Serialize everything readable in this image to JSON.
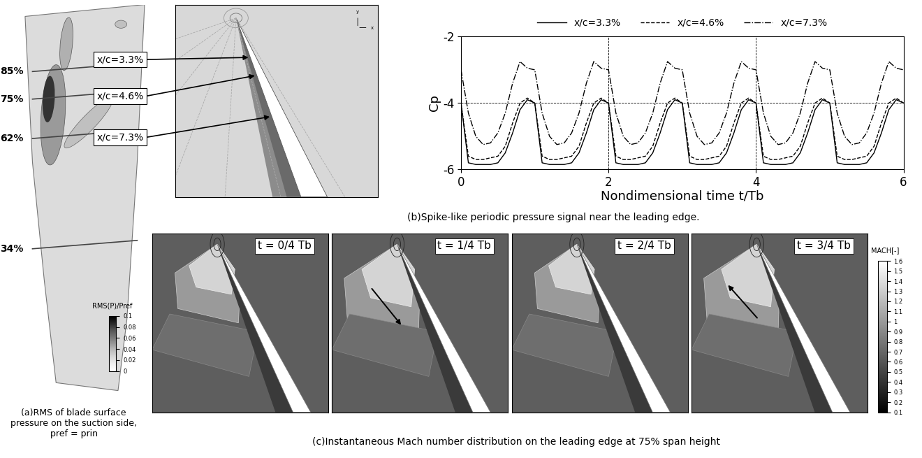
{
  "chart_data": {
    "type": "line",
    "xlabel": "Nondimensional time t/Tb",
    "ylabel": "Cp",
    "xlim": [
      0,
      6
    ],
    "ylim": [
      -6,
      -2
    ],
    "xticks": [
      0,
      2,
      4,
      6
    ],
    "yticks": [
      -6,
      -4,
      -2
    ],
    "grid": true,
    "legend": "top",
    "x": [
      0,
      0.1,
      0.2,
      0.3,
      0.4,
      0.5,
      0.6,
      0.7,
      0.8,
      0.9,
      1,
      1.1,
      1.2,
      1.3,
      1.4,
      1.5,
      1.6,
      1.7,
      1.8,
      1.9,
      2,
      2.1,
      2.2,
      2.3,
      2.4,
      2.5,
      2.6,
      2.7,
      2.8,
      2.9,
      3,
      3.1,
      3.2,
      3.3,
      3.4,
      3.5,
      3.6,
      3.7,
      3.8,
      3.9,
      4,
      4.1,
      4.2,
      4.3,
      4.4,
      4.5,
      4.6,
      4.7,
      4.8,
      4.9,
      5,
      5.1,
      5.2,
      5.3,
      5.4,
      5.5,
      5.6,
      5.7,
      5.8,
      5.9,
      6
    ],
    "series": [
      {
        "name": "x/c=3.3%",
        "color": "#000000",
        "line_style": "solid",
        "values": [
          -4.0,
          -5.8,
          -5.85,
          -5.85,
          -5.85,
          -5.8,
          -5.5,
          -4.9,
          -4.2,
          -3.9,
          -4.0,
          -5.8,
          -5.85,
          -5.85,
          -5.85,
          -5.8,
          -5.5,
          -4.9,
          -4.2,
          -3.9,
          -4.0,
          -5.8,
          -5.85,
          -5.85,
          -5.85,
          -5.8,
          -5.5,
          -4.9,
          -4.2,
          -3.9,
          -4.0,
          -5.8,
          -5.85,
          -5.85,
          -5.85,
          -5.8,
          -5.5,
          -4.9,
          -4.2,
          -3.9,
          -4.0,
          -5.8,
          -5.85,
          -5.85,
          -5.85,
          -5.8,
          -5.5,
          -4.9,
          -4.2,
          -3.9,
          -4.0,
          -5.8,
          -5.85,
          -5.85,
          -5.85,
          -5.8,
          -5.5,
          -4.9,
          -4.2,
          -3.9,
          -4.0
        ]
      },
      {
        "name": "x/c=4.6%",
        "color": "#000000",
        "line_style": "dashed",
        "values": [
          -4.0,
          -5.6,
          -5.7,
          -5.7,
          -5.65,
          -5.6,
          -5.3,
          -4.6,
          -4.0,
          -3.85,
          -4.0,
          -5.6,
          -5.7,
          -5.7,
          -5.65,
          -5.6,
          -5.3,
          -4.6,
          -4.0,
          -3.85,
          -4.0,
          -5.6,
          -5.7,
          -5.7,
          -5.65,
          -5.6,
          -5.3,
          -4.6,
          -4.0,
          -3.85,
          -4.0,
          -5.6,
          -5.7,
          -5.7,
          -5.65,
          -5.6,
          -5.3,
          -4.6,
          -4.0,
          -3.85,
          -4.0,
          -5.6,
          -5.7,
          -5.7,
          -5.65,
          -5.6,
          -5.3,
          -4.6,
          -4.0,
          -3.85,
          -4.0,
          -5.6,
          -5.7,
          -5.7,
          -5.65,
          -5.6,
          -5.3,
          -4.6,
          -4.0,
          -3.85,
          -4.0
        ]
      },
      {
        "name": "x/c=7.3%",
        "color": "#000000",
        "line_style": "dashdot",
        "values": [
          -3.0,
          -4.3,
          -5.0,
          -5.25,
          -5.2,
          -4.9,
          -4.3,
          -3.4,
          -2.75,
          -2.95,
          -3.0,
          -4.3,
          -5.0,
          -5.25,
          -5.2,
          -4.9,
          -4.3,
          -3.4,
          -2.75,
          -2.95,
          -3.0,
          -4.3,
          -5.0,
          -5.25,
          -5.2,
          -4.9,
          -4.3,
          -3.4,
          -2.75,
          -2.95,
          -3.0,
          -4.3,
          -5.0,
          -5.25,
          -5.2,
          -4.9,
          -4.3,
          -3.4,
          -2.75,
          -2.95,
          -3.0,
          -4.3,
          -5.0,
          -5.25,
          -5.2,
          -4.9,
          -4.3,
          -3.4,
          -2.75,
          -2.95,
          -3.0,
          -4.3,
          -5.0,
          -5.25,
          -5.2,
          -4.9,
          -4.3,
          -3.4,
          -2.75,
          -2.95,
          -3.0
        ]
      }
    ]
  },
  "panel_a": {
    "caption": [
      "(a)RMS of blade surface",
      "pressure on the suction side,",
      "pref = prin"
    ],
    "span_labels": [
      "85%",
      "75%",
      "62%",
      "34%"
    ],
    "colorbar": {
      "title": "RMS(P)/Pref",
      "range": [
        0,
        0.1
      ],
      "ticks": [
        0,
        0.02,
        0.04,
        0.06,
        0.08,
        0.1
      ]
    }
  },
  "panel_b": {
    "caption": "(b)Spike-like periodic pressure signal near the leading edge.",
    "probe_labels": [
      "x/c=3.3%",
      "x/c=4.6%",
      "x/c=7.3%"
    ],
    "axis_icon_labels": [
      "x",
      "y"
    ]
  },
  "panel_c": {
    "caption": "(c)Instantaneous Mach number distribution on the leading edge at 75% span height",
    "frame_labels": [
      "t = 0/4 Tb",
      "t = 1/4 Tb",
      "t = 2/4 Tb",
      "t = 3/4 Tb"
    ],
    "colorbar": {
      "title": "MACH[-]",
      "range": [
        0.1,
        1.6
      ],
      "ticks": [
        0.1,
        0.2,
        0.3,
        0.4,
        0.5,
        0.6,
        0.7,
        0.8,
        0.9,
        1,
        1.1,
        1.2,
        1.3,
        1.4,
        1.5,
        1.6
      ]
    }
  }
}
